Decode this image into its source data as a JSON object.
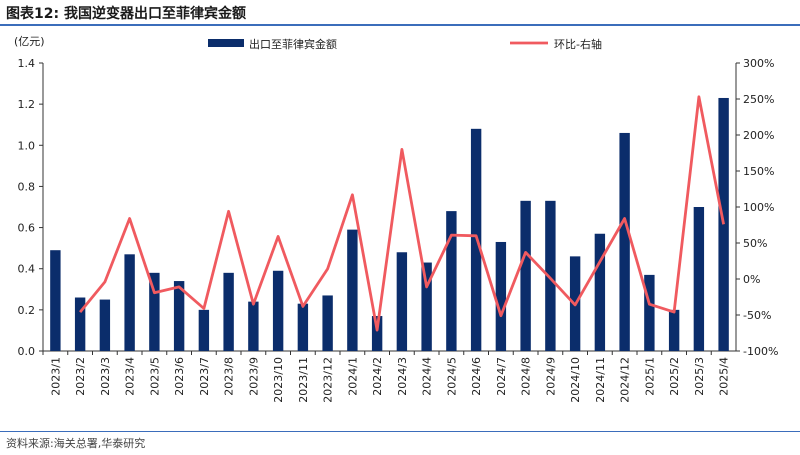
{
  "header": {
    "title": "图表12:  我国逆变器出口至菲律宾金额"
  },
  "footer": {
    "source": "资料来源:海关总署,华泰研究"
  },
  "chart_data": {
    "type": "bar+line",
    "y_left_unit": "(亿元)",
    "y_left_ticks": [
      "0.0",
      "0.2",
      "0.4",
      "0.6",
      "0.8",
      "1.0",
      "1.2",
      "1.4"
    ],
    "y_left_range": [
      0,
      1.4
    ],
    "y_right_ticks": [
      "-100%",
      "-50%",
      "0%",
      "50%",
      "100%",
      "150%",
      "200%",
      "250%",
      "300%"
    ],
    "y_right_range": [
      -100,
      300
    ],
    "legend_position": "top",
    "colors": {
      "bar": "#0b2d6b",
      "line": "#f05a5f",
      "axis": "#333333"
    },
    "categories": [
      "2023/1",
      "2023/2",
      "2023/3",
      "2023/4",
      "2023/5",
      "2023/6",
      "2023/7",
      "2023/8",
      "2023/9",
      "2023/10",
      "2023/11",
      "2023/12",
      "2024/1",
      "2024/2",
      "2024/3",
      "2024/4",
      "2024/5",
      "2024/6",
      "2024/7",
      "2024/8",
      "2024/9",
      "2024/10",
      "2024/11",
      "2024/12",
      "2025/1",
      "2025/2",
      "2025/3",
      "2025/4"
    ],
    "series": [
      {
        "name": "出口至菲律宾金额",
        "type": "bar",
        "axis": "left",
        "values": [
          0.49,
          0.26,
          0.25,
          0.47,
          0.38,
          0.34,
          0.2,
          0.38,
          0.24,
          0.39,
          0.23,
          0.27,
          0.59,
          0.17,
          0.48,
          0.43,
          0.68,
          1.08,
          0.53,
          0.73,
          0.73,
          0.46,
          0.57,
          1.06,
          0.37,
          0.2,
          0.7,
          1.23
        ]
      },
      {
        "name": "环比-右轴",
        "type": "line",
        "axis": "right",
        "values": [
          null,
          -46,
          -4,
          84,
          -19,
          -11,
          -41,
          94,
          -35,
          59,
          -38,
          14,
          117,
          -71,
          180,
          -11,
          61,
          60,
          -51,
          37,
          1,
          -36,
          24,
          84,
          -35,
          -46,
          253,
          76
        ]
      }
    ]
  }
}
